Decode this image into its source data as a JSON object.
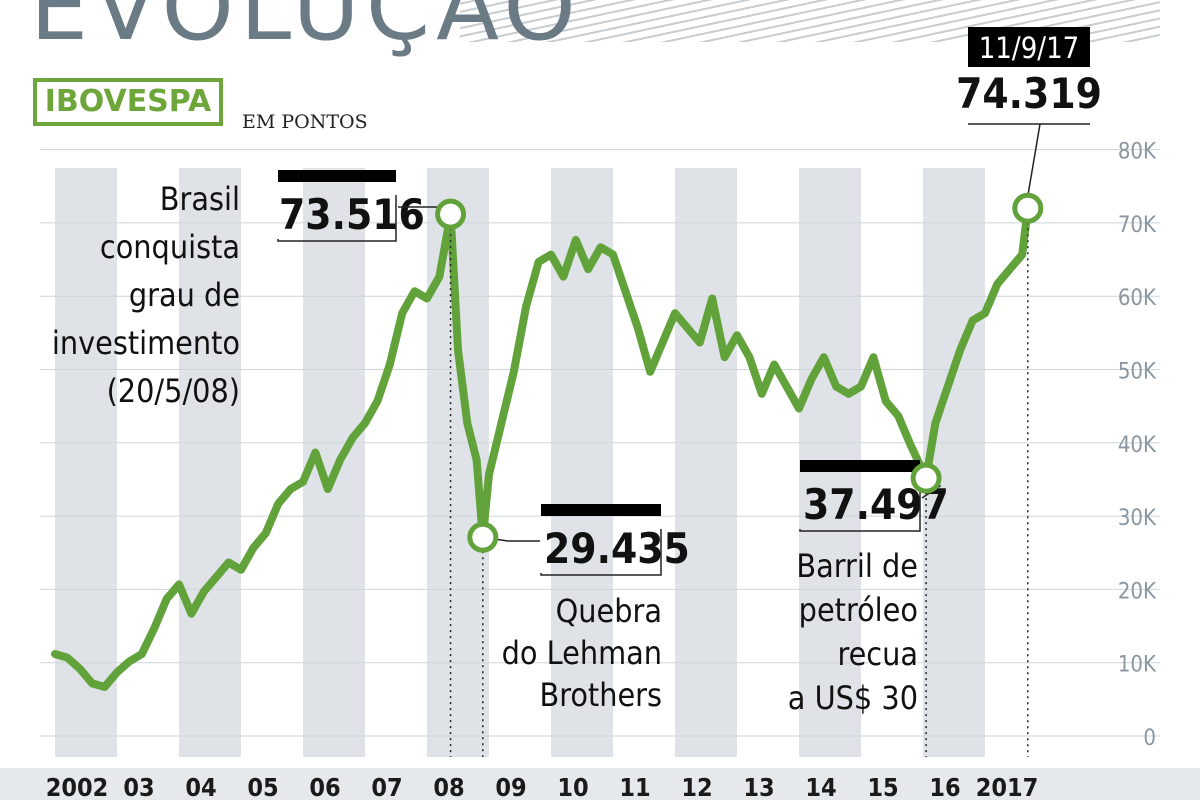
{
  "header": {
    "title": "EVOLUÇÃO",
    "index_name": "IBOVESPA",
    "unit": "EM PONTOS"
  },
  "colors": {
    "line": "#62a23a",
    "marker_fill": "#ffffff",
    "band": "#dfe3e7",
    "accent_title": "#6b7b86"
  },
  "chart_data": {
    "type": "line",
    "title": "EVOLUÇÃO",
    "subtitle": "IBOVESPA",
    "ylabel": "EM PONTOS",
    "ylim": [
      0,
      80000
    ],
    "y_ticks": [
      "0",
      "10K",
      "20K",
      "30K",
      "40K",
      "50K",
      "60K",
      "70K",
      "80K"
    ],
    "x_ticks": [
      "2002",
      "03",
      "04",
      "05",
      "06",
      "07",
      "08",
      "09",
      "10",
      "11",
      "12",
      "13",
      "14",
      "15",
      "16",
      "2017"
    ],
    "grid": "alternating vertical year bands",
    "series": [
      {
        "values_x": [
          2002.0,
          2002.2,
          2002.4,
          2002.6,
          2002.8,
          2003.0,
          2003.2,
          2003.4,
          2003.6,
          2003.8,
          2004.0,
          2004.2,
          2004.4,
          2004.6,
          2004.8,
          2005.0,
          2005.2,
          2005.4,
          2005.6,
          2005.8,
          2006.0,
          2006.2,
          2006.4,
          2006.6,
          2006.8,
          2007.0,
          2007.2,
          2007.4,
          2007.6,
          2007.8,
          2008.0,
          2008.2,
          2008.38,
          2008.5,
          2008.65,
          2008.8,
          2008.9,
          2009.0,
          2009.2,
          2009.4,
          2009.6,
          2009.8,
          2010.0,
          2010.2,
          2010.4,
          2010.6,
          2010.8,
          2011.0,
          2011.2,
          2011.4,
          2011.6,
          2011.8,
          2012.0,
          2012.2,
          2012.4,
          2012.6,
          2012.8,
          2013.0,
          2013.2,
          2013.4,
          2013.6,
          2013.8,
          2014.0,
          2014.2,
          2014.4,
          2014.6,
          2014.8,
          2015.0,
          2015.2,
          2015.4,
          2015.6,
          2015.8,
          2016.05,
          2016.2,
          2016.4,
          2016.6,
          2016.8,
          2017.0,
          2017.2,
          2017.4,
          2017.6,
          2017.69
        ],
        "values_y": [
          13500,
          13000,
          11500,
          9500,
          9000,
          11000,
          12500,
          13500,
          17000,
          21000,
          23000,
          19000,
          22000,
          24000,
          26000,
          25000,
          28000,
          30000,
          34000,
          36000,
          37000,
          41000,
          36000,
          40000,
          43000,
          45000,
          48000,
          53000,
          60000,
          63000,
          62000,
          65000,
          73516,
          55000,
          45000,
          40000,
          29435,
          38000,
          45000,
          52000,
          61000,
          67000,
          68000,
          65000,
          70000,
          66000,
          69000,
          68000,
          63000,
          58000,
          52000,
          56000,
          60000,
          58000,
          56000,
          62000,
          54000,
          57000,
          54000,
          49000,
          53000,
          50000,
          47000,
          51000,
          54000,
          50000,
          49000,
          50000,
          54000,
          48000,
          46000,
          42000,
          37497,
          45000,
          50000,
          55000,
          59000,
          60000,
          64000,
          66000,
          68000,
          74319
        ]
      }
    ],
    "annotations": [
      {
        "date": "",
        "value": "73.516",
        "text": [
          "Brasil",
          "conquista",
          "grau de",
          "investimento",
          "(20/5/08)"
        ]
      },
      {
        "date": "",
        "value": "29.435",
        "text": [
          "Quebra",
          "do Lehman",
          "Brothers"
        ]
      },
      {
        "date": "",
        "value": "37.497",
        "text": [
          "Barril de",
          "petróleo",
          "recua",
          "a US$ 30"
        ]
      },
      {
        "date": "11/9/17",
        "value": "74.319",
        "text": []
      }
    ]
  }
}
